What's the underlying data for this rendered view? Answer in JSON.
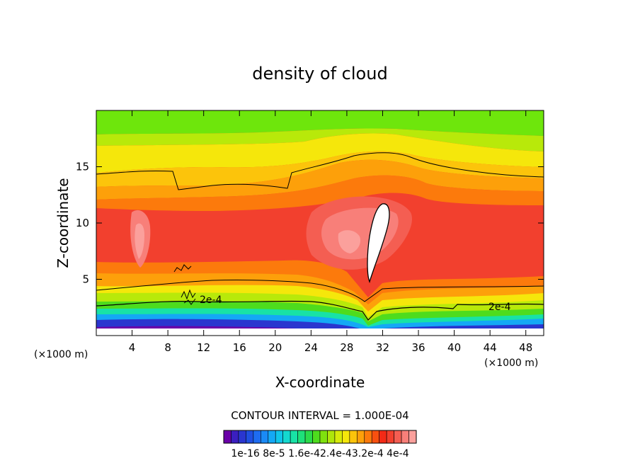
{
  "chart_data": {
    "type": "heatmap",
    "title": "density of cloud",
    "xlabel": "X-coordinate",
    "ylabel": "Z-coordinate",
    "xlim": [
      0,
      50
    ],
    "ylim": [
      0,
      20
    ],
    "x_ticks": [
      4,
      8,
      12,
      16,
      20,
      24,
      28,
      32,
      36,
      40,
      44,
      48
    ],
    "y_ticks": [
      5,
      10,
      15
    ],
    "x_unit_left": "(×1000 m)",
    "x_unit_right": "(×1000 m)",
    "contour_interval_text": "CONTOUR INTERVAL = 1.000E-04",
    "contour_labels": [
      {
        "text": "2e-4",
        "x": 12.2,
        "z": 3.3
      },
      {
        "text": "2e-4",
        "x": 44.5,
        "z": 2.6
      }
    ],
    "colorbar": {
      "labels": [
        "1e-16",
        "8e-5",
        "1.6e-4",
        "2.4e-4",
        "3.2e-4",
        "4e-4"
      ],
      "label_line": "1e-16 8e-5 1.6e-42.4e-43.2e-4 4e-4",
      "colors": [
        "#6a00a8",
        "#3a1fbf",
        "#2a36cf",
        "#1f4fe0",
        "#1e6cf0",
        "#1a8af5",
        "#14a8f5",
        "#10c5ea",
        "#14d9cf",
        "#18e2a6",
        "#1ee07a",
        "#2bdb4a",
        "#4edc1d",
        "#7fe10e",
        "#aee60b",
        "#d7eb0a",
        "#f5e70b",
        "#fcc40b",
        "#fda00a",
        "#fc7a0c",
        "#f85010",
        "#f32a16",
        "#f2402e",
        "#f45e52",
        "#f87f79",
        "#fba09c"
      ]
    },
    "bands": [
      {
        "level": "0 to 1.6e-4",
        "z_range": [
          0.5,
          2.5
        ],
        "description_colors": [
          "purple",
          "blue",
          "cyan",
          "green"
        ]
      },
      {
        "level": "1.6e-4 to 2.4e-4",
        "z_range": [
          2.5,
          4.5
        ],
        "description_colors": [
          "yellow"
        ]
      },
      {
        "level": "2.4e-4 to 4e-4",
        "z_range": [
          4.5,
          14.5
        ],
        "description_colors": [
          "orange",
          "red",
          "pink"
        ]
      },
      {
        "level": "max",
        "region": "x 29-32, z 4.7-11.6",
        "description_colors": [
          "white"
        ]
      }
    ]
  }
}
